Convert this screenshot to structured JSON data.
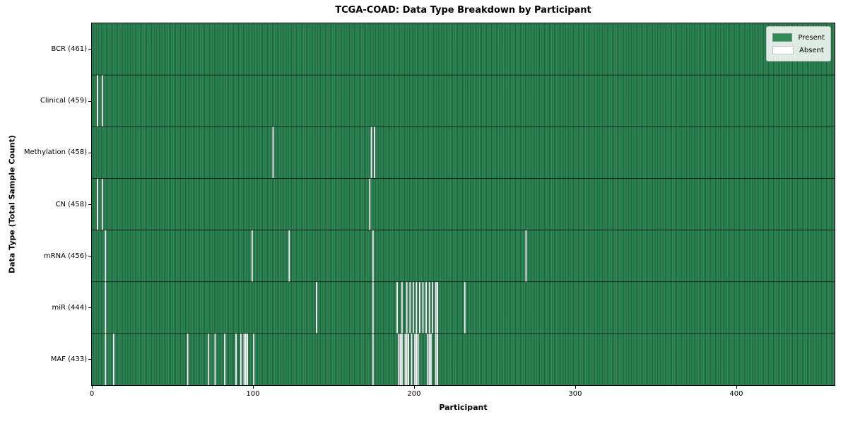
{
  "figure": {
    "title": "TCGA-COAD: Data Type Breakdown by Participant",
    "xlabel": "Participant",
    "ylabel": "Data Type (Total Sample Count)"
  },
  "legend": {
    "present_label": "Present",
    "absent_label": "Absent"
  },
  "chart_data": {
    "type": "heatmap",
    "title": "TCGA-COAD: Data Type Breakdown by Participant",
    "xlabel": "Participant",
    "ylabel": "Data Type (Total Sample Count)",
    "legend_position": "upper right",
    "grid": false,
    "n_participants": 461,
    "x_ticks": [
      0,
      100,
      200,
      300,
      400
    ],
    "xlim": [
      0,
      461
    ],
    "value_encoding": {
      "present": 1,
      "absent": 0
    },
    "colors": {
      "present": "#2e8b57",
      "absent": "#ffffff",
      "cell_edge": "rgba(0,0,0,0.55)",
      "row_separator": "rgba(0,0,0,0.85)"
    },
    "rows": [
      {
        "name": "BCR",
        "label": "BCR (461)",
        "total": 461,
        "absent_participants": []
      },
      {
        "name": "Clinical",
        "label": "Clinical (459)",
        "total": 459,
        "absent_participants": [
          3,
          6
        ]
      },
      {
        "name": "Methylation",
        "label": "Methylation (458)",
        "total": 458,
        "absent_participants": [
          112,
          173,
          175
        ]
      },
      {
        "name": "CN",
        "label": "CN (458)",
        "total": 458,
        "absent_participants": [
          3,
          6,
          172
        ]
      },
      {
        "name": "mRNA",
        "label": "mRNA (456)",
        "total": 456,
        "absent_participants": [
          8,
          99,
          122,
          174,
          269
        ]
      },
      {
        "name": "miR",
        "label": "miR (444)",
        "total": 444,
        "absent_participants": [
          8,
          139,
          174,
          189,
          192,
          195,
          197,
          199,
          201,
          203,
          205,
          207,
          209,
          211,
          213,
          214,
          231
        ]
      },
      {
        "name": "MAF",
        "label": "MAF (433)",
        "total": 433,
        "absent_participants": [
          8,
          13,
          59,
          72,
          76,
          82,
          89,
          92,
          94,
          95,
          96,
          100,
          174,
          190,
          191,
          192,
          194,
          195,
          196,
          198,
          200,
          201,
          202,
          208,
          209,
          210,
          213,
          214
        ]
      }
    ]
  }
}
